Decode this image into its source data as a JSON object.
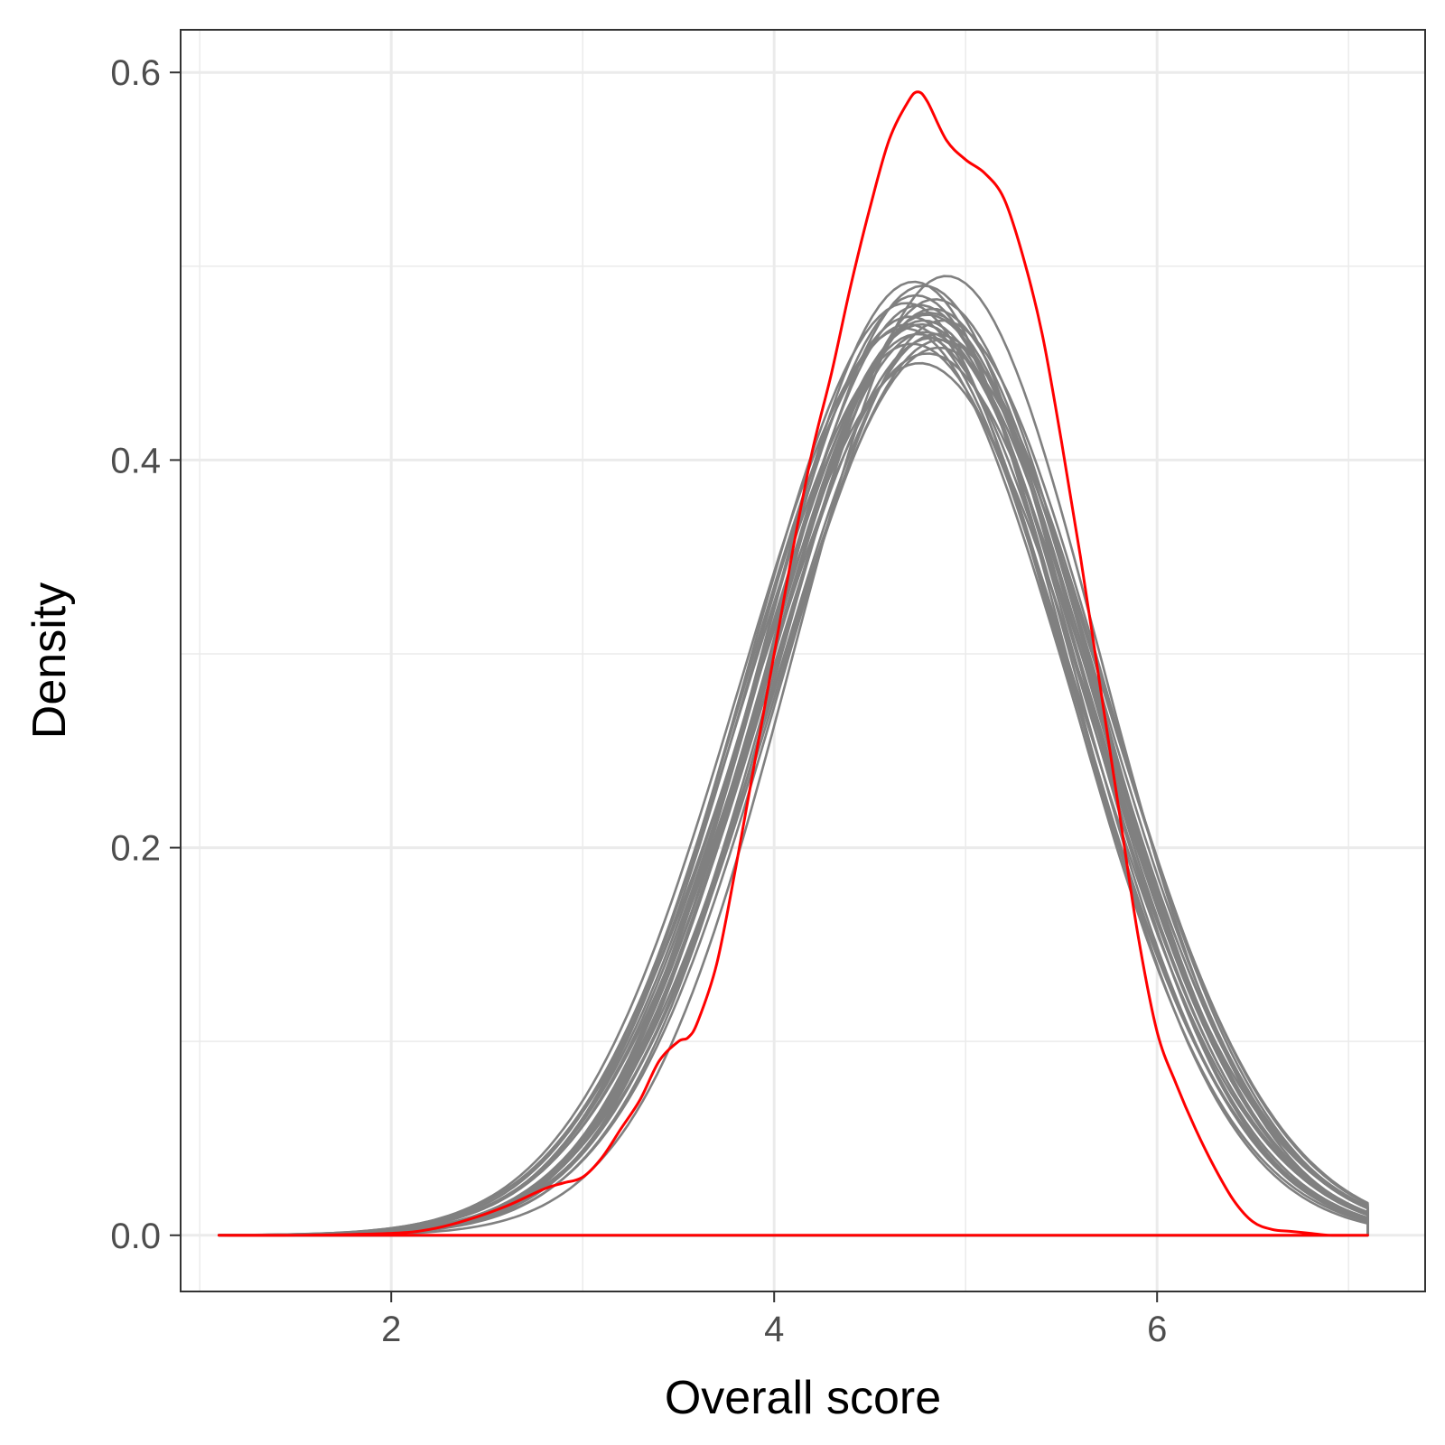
{
  "chart_data": {
    "type": "line",
    "xlabel": "Overall score",
    "ylabel": "Density",
    "xlim": [
      0.9,
      7.4
    ],
    "ylim": [
      -0.029,
      0.622
    ],
    "x_ticks": [
      2,
      4,
      6
    ],
    "x_tick_labels": [
      "2",
      "4",
      "6"
    ],
    "y_ticks": [
      0.0,
      0.2,
      0.4,
      0.6
    ],
    "y_tick_labels": [
      "0.0",
      "0.2",
      "0.4",
      "0.6"
    ],
    "grid": true,
    "legend": "none",
    "colors": {
      "observed": "#ff0000",
      "replicates": "#808080",
      "grid": "#ebebeb",
      "border": "#333333"
    },
    "series": [
      {
        "role": "observed",
        "x": [
          1.1,
          1.5,
          2.0,
          2.2,
          2.4,
          2.6,
          2.8,
          2.9,
          3.0,
          3.1,
          3.2,
          3.3,
          3.4,
          3.5,
          3.55,
          3.6,
          3.7,
          3.8,
          3.9,
          4.0,
          4.1,
          4.2,
          4.3,
          4.4,
          4.5,
          4.6,
          4.7,
          4.75,
          4.8,
          4.9,
          5.0,
          5.1,
          5.2,
          5.3,
          5.4,
          5.5,
          5.6,
          5.7,
          5.8,
          5.9,
          6.0,
          6.1,
          6.2,
          6.3,
          6.4,
          6.5,
          6.6,
          6.7,
          6.8,
          6.9,
          7.0,
          7.1
        ],
        "y": [
          0.0,
          0.0,
          0.001,
          0.003,
          0.008,
          0.015,
          0.024,
          0.027,
          0.03,
          0.04,
          0.055,
          0.07,
          0.09,
          0.1,
          0.102,
          0.11,
          0.14,
          0.19,
          0.245,
          0.3,
          0.355,
          0.405,
          0.445,
          0.49,
          0.53,
          0.565,
          0.585,
          0.59,
          0.585,
          0.565,
          0.555,
          0.548,
          0.535,
          0.505,
          0.465,
          0.41,
          0.35,
          0.285,
          0.22,
          0.155,
          0.105,
          0.078,
          0.055,
          0.035,
          0.018,
          0.007,
          0.003,
          0.002,
          0.001,
          0.0,
          0.0,
          0.0
        ]
      },
      {
        "role": "replicate",
        "mu": 4.75,
        "sigma": 0.86,
        "peak": 0.465
      },
      {
        "role": "replicate",
        "mu": 4.8,
        "sigma": 0.84,
        "peak": 0.475
      },
      {
        "role": "replicate",
        "mu": 4.7,
        "sigma": 0.85,
        "peak": 0.47
      },
      {
        "role": "replicate",
        "mu": 4.85,
        "sigma": 0.85,
        "peak": 0.465
      },
      {
        "role": "replicate",
        "mu": 4.78,
        "sigma": 0.81,
        "peak": 0.49
      },
      {
        "role": "replicate",
        "mu": 4.72,
        "sigma": 0.87,
        "peak": 0.46
      },
      {
        "role": "replicate",
        "mu": 4.82,
        "sigma": 0.86,
        "peak": 0.463
      },
      {
        "role": "replicate",
        "mu": 4.76,
        "sigma": 0.83,
        "peak": 0.48
      },
      {
        "role": "replicate",
        "mu": 4.68,
        "sigma": 0.86,
        "peak": 0.468
      },
      {
        "role": "replicate",
        "mu": 4.88,
        "sigma": 0.84,
        "peak": 0.472
      },
      {
        "role": "replicate",
        "mu": 4.8,
        "sigma": 0.88,
        "peak": 0.455
      },
      {
        "role": "replicate",
        "mu": 4.74,
        "sigma": 0.82,
        "peak": 0.485
      },
      {
        "role": "replicate",
        "mu": 4.9,
        "sigma": 0.8,
        "peak": 0.495
      },
      {
        "role": "replicate",
        "mu": 4.77,
        "sigma": 0.86,
        "peak": 0.47
      },
      {
        "role": "replicate",
        "mu": 4.83,
        "sigma": 0.83,
        "peak": 0.478
      },
      {
        "role": "replicate",
        "mu": 4.71,
        "sigma": 0.84,
        "peak": 0.474
      },
      {
        "role": "replicate",
        "mu": 4.86,
        "sigma": 0.87,
        "peak": 0.458
      },
      {
        "role": "replicate",
        "mu": 4.79,
        "sigma": 0.85,
        "peak": 0.466
      },
      {
        "role": "replicate",
        "mu": 4.73,
        "sigma": 0.8,
        "peak": 0.492
      },
      {
        "role": "replicate",
        "mu": 4.84,
        "sigma": 0.82,
        "peak": 0.483
      },
      {
        "role": "replicate",
        "mu": 4.76,
        "sigma": 0.89,
        "peak": 0.45
      },
      {
        "role": "replicate",
        "mu": 4.81,
        "sigma": 0.84,
        "peak": 0.476
      },
      {
        "role": "replicate",
        "mu": 4.69,
        "sigma": 0.83,
        "peak": 0.481
      },
      {
        "role": "replicate",
        "mu": 4.87,
        "sigma": 0.86,
        "peak": 0.462
      },
      {
        "role": "replicate",
        "mu": 4.78,
        "sigma": 0.84,
        "peak": 0.472
      }
    ]
  }
}
